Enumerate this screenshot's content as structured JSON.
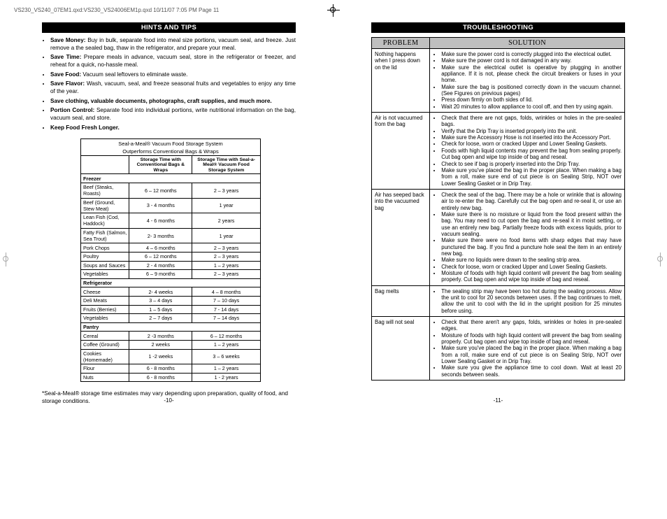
{
  "header": "VS230_VS240_07EM1.qxd:VS230_VS24006EM1p.qxd  10/11/07  7:05 PM  Page 11",
  "left": {
    "section_title": "HINTS AND TIPS",
    "hints": [
      {
        "b": "Save Money:",
        "t": " Buy in bulk, separate food into meal size portions, vacuum seal, and freeze. Just remove a the sealed bag, thaw in the refrigerator, and prepare your meal."
      },
      {
        "b": "Save Time:",
        "t": " Prepare meals in advance, vacuum seal, store in the refrigerator or freezer, and reheat for a quick, no-hassle meal."
      },
      {
        "b": "Save Food:",
        "t": " Vacuum seal leftovers to eliminate waste."
      },
      {
        "b": "Save Flavor:",
        "t": " Wash, vacuum, seal, and freeze seasonal fruits and vegetables to enjoy any time of the year."
      },
      {
        "b": "Save clothing, valuable documents, photographs, craft supplies, and much more.",
        "t": ""
      },
      {
        "b": "Portion Control:",
        "t": " Separate food into individual portions, write nutritional information on the bag, vacuum seal, and store."
      },
      {
        "b": "Keep Food Fresh Longer.",
        "t": ""
      }
    ],
    "storage": {
      "title": "Seal-a-Meal® Vacuum Food Storage System",
      "subtitle": "Outperforms Conventional Bags & Wraps",
      "col2": "Storage Time with Conventional Bags & Wraps",
      "col3": "Storage Time with Seal-a-Meal® Vacuum Food Storage System",
      "sections": [
        {
          "name": "Freezer",
          "rows": [
            [
              "Beef  (Steaks, Roasts)",
              "6 – 12 months",
              "2 – 3 years"
            ],
            [
              "Beef (Ground, Stew Meat)",
              "3 - 4 months",
              "1 year"
            ],
            [
              "Lean Fish (Cod, Haddock)",
              "4 - 6 months",
              "2 years"
            ],
            [
              "Fatty Fish (Salmon, Sea Trout)",
              "2- 3 months",
              "1 year"
            ],
            [
              "Pork Chops",
              "4 – 6 months",
              "2 – 3 years"
            ],
            [
              "Poultry",
              "6 – 12 months",
              "2 – 3 years"
            ],
            [
              "Soups and Sauces",
              "2 - 4 months",
              "1 – 2 years"
            ],
            [
              "Vegetables",
              "6 – 9 months",
              "2 – 3 years"
            ]
          ]
        },
        {
          "name": "Refrigerator",
          "rows": [
            [
              "Cheese",
              "2- 4 weeks",
              "4 – 8 months"
            ],
            [
              "Deli Meats",
              "3 – 4 days",
              "7 – 10 days"
            ],
            [
              "Fruits (Berries)",
              "1 – 5 days",
              "7 - 14 days"
            ],
            [
              "Vegetables",
              "2 – 7 days",
              "7 – 14 days"
            ]
          ]
        },
        {
          "name": "Pantry",
          "rows": [
            [
              "Cereal",
              "2 -3 months",
              "6 – 12 months"
            ],
            [
              "Coffee (Ground)",
              "2 weeks",
              "1 – 2 years"
            ],
            [
              "Cookies (Homemade)",
              "1 -2 weeks",
              "3 – 6 weeks"
            ],
            [
              "Flour",
              "6 - 8 months",
              "1 – 2 years"
            ],
            [
              "Nuts",
              "6 - 8 months",
              "1 - 2 years"
            ]
          ]
        }
      ]
    },
    "footnote": "*Seal-a-Meal® storage time estimates may vary depending upon preparation, quality of food, and storage conditions.",
    "page_num": "-10-"
  },
  "right": {
    "section_title": "TROUBLESHOOTING",
    "head_problem": "PROBLEM",
    "head_solution": "SOLUTION",
    "rows": [
      {
        "problem": "Nothing happens when I press down on the lid",
        "solutions": [
          "Make sure the power cord is correctly plugged into the electrical outlet.",
          "Make sure the power cord is not damaged in any way.",
          "Make sure the electrical outlet is operative by plugging in another appliance. If it is not, please check the circuit breakers or fuses in your home.",
          "Make sure the bag is positioned correctly down in the vacuum channel. (See Figures on previous pages)",
          "Press down firmly on both sides of lid.",
          "Wait 20 minutes to allow appliance to cool off, and then try using again."
        ]
      },
      {
        "problem": "Air is not vacuumed from the bag",
        "solutions": [
          "Check that there are not gaps, folds, wrinkles or holes in the pre-sealed bags.",
          "Verify that the Drip Tray is inserted properly into the unit.",
          "Make sure the Accessory Hose is not inserted into the Accessory Port.",
          "Check for loose, worn or cracked Upper and Lower Sealing Gaskets.",
          "Foods with high liquid contents may prevent the bag from sealing properly. Cut bag open and wipe top inside of bag and reseal.",
          "Check to see if bag is properly inserted into the Drip Tray.",
          "Make sure you've placed the bag in the proper place. When making a bag from a roll, make sure end of cut piece is on Sealing Strip, NOT over Lower Sealing Gasket or in Drip Tray."
        ]
      },
      {
        "problem": "Air has seeped back into the vacuumed bag",
        "solutions": [
          "Check the seal of the bag. There may be a hole or wrinkle that is allowing air to re-enter the bag. Carefully cut the bag open and re-seal it, or use an entirely new bag.",
          "Make sure there is no moisture or liquid from the food present within the bag. You may need to cut open the bag and re-seal it in moist setting, or use an entirely new bag. Partially freeze foods with excess liquids, prior to vacuum sealing.",
          "Make sure there were no food items with sharp edges that may have punctured the bag. If you find a puncture hole seal the item in an entirely new bag.",
          "Make sure no liquids were drawn to the sealing strip area.",
          "Check for loose, worn or cracked Upper and Lower Sealing Gaskets.",
          "Moisture of foods with high liquid content will prevent the bag from sealing properly. Cut bag open and wipe top inside of bag and reseal."
        ]
      },
      {
        "problem": "Bag melts",
        "solutions": [
          "The sealing strip may have been too hot during the sealing process. Allow the unit to cool for 20 seconds between uses. If the bag continues to melt, allow the unit to cool with the lid in the upright position for 25 minutes before using."
        ]
      },
      {
        "problem": "Bag will not seal",
        "solutions": [
          "Check that there aren't any gaps, folds, wrinkles or holes in pre-sealed edges.",
          "Moisture of foods with high liquid content will prevent the bag from sealing properly. Cut bag open and wipe top inside of bag and reseal.",
          "Make sure you've placed the bag in the proper place. When making a bag from a roll, make sure end of cut piece is on Sealing Strip, NOT over Lower Sealing Gasket or in Drip Tray.",
          "Make sure you give the appliance time to cool down.  Wait at least 20 seconds between seals."
        ]
      }
    ],
    "page_num": "-11-"
  }
}
